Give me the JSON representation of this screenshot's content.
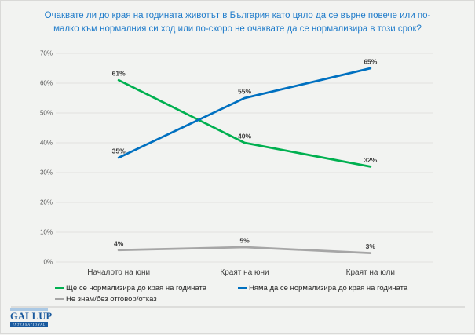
{
  "title": {
    "lines": [
      "Очаквате ли до края на годината животът в България като цяло да се върне повече или по-",
      "малко към нормалния си ход или по-скоро не очаквате да се нормализира в този срок?"
    ],
    "color": "#1e7bca"
  },
  "chart_data": {
    "type": "line",
    "title": "Очаквате ли до края на годината животът в България като цяло да се върне повече или по-малко към нормалния си ход или по-скоро не очаквате да се нормализира в този срок?",
    "categories": [
      "Началото на юни",
      "Краят на юни",
      "Краят на юли"
    ],
    "series": [
      {
        "name": "Ще се нормализира до края на годината",
        "values": [
          61,
          40,
          32
        ],
        "color": "#00B050"
      },
      {
        "name": "Няма да се нормализира до края на годината",
        "values": [
          35,
          55,
          65
        ],
        "color": "#0070C0"
      },
      {
        "name": "Не знам/без отговор/отказ",
        "values": [
          4,
          5,
          3
        ],
        "color": "#A6A6A6"
      }
    ],
    "ylim": [
      0,
      70
    ],
    "ytick_step": 10,
    "tick_suffix": "%",
    "data_label_suffix": "%",
    "grid": true,
    "legend_position": "bottom-left"
  },
  "footer": {
    "logo_text": "GALLUP",
    "logo_subtext": "INTERNATIONAL"
  }
}
